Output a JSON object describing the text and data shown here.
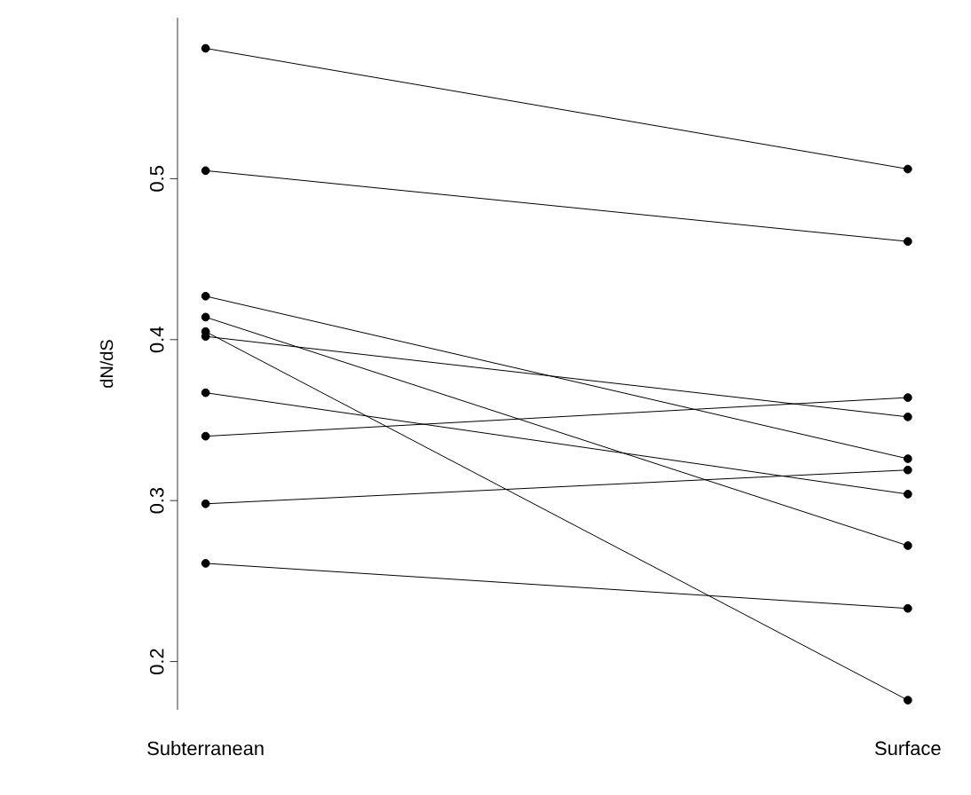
{
  "chart_data": {
    "type": "line",
    "ylabel": "dN/dS",
    "categories": [
      "Subterranean",
      "Surface"
    ],
    "series": [
      {
        "color": "#000000",
        "values": [
          0.581,
          0.506
        ]
      },
      {
        "color": "#000000",
        "values": [
          0.505,
          0.461
        ]
      },
      {
        "color": "#000000",
        "values": [
          0.427,
          0.326
        ]
      },
      {
        "color": "#000000",
        "values": [
          0.414,
          0.272
        ]
      },
      {
        "color": "#000000",
        "values": [
          0.405,
          0.176
        ]
      },
      {
        "color": "#000000",
        "values": [
          0.402,
          0.352
        ]
      },
      {
        "color": "#000000",
        "values": [
          0.367,
          0.304
        ]
      },
      {
        "color": "#000000",
        "values": [
          0.34,
          0.364
        ]
      },
      {
        "color": "#000000",
        "values": [
          0.298,
          0.319
        ]
      },
      {
        "color": "#000000",
        "values": [
          0.261,
          0.233
        ]
      }
    ],
    "ylim": [
      0.17,
      0.6
    ],
    "yticks": [
      0.2,
      0.3,
      0.4,
      0.5
    ],
    "marker": "circle",
    "line_style": "solid"
  }
}
